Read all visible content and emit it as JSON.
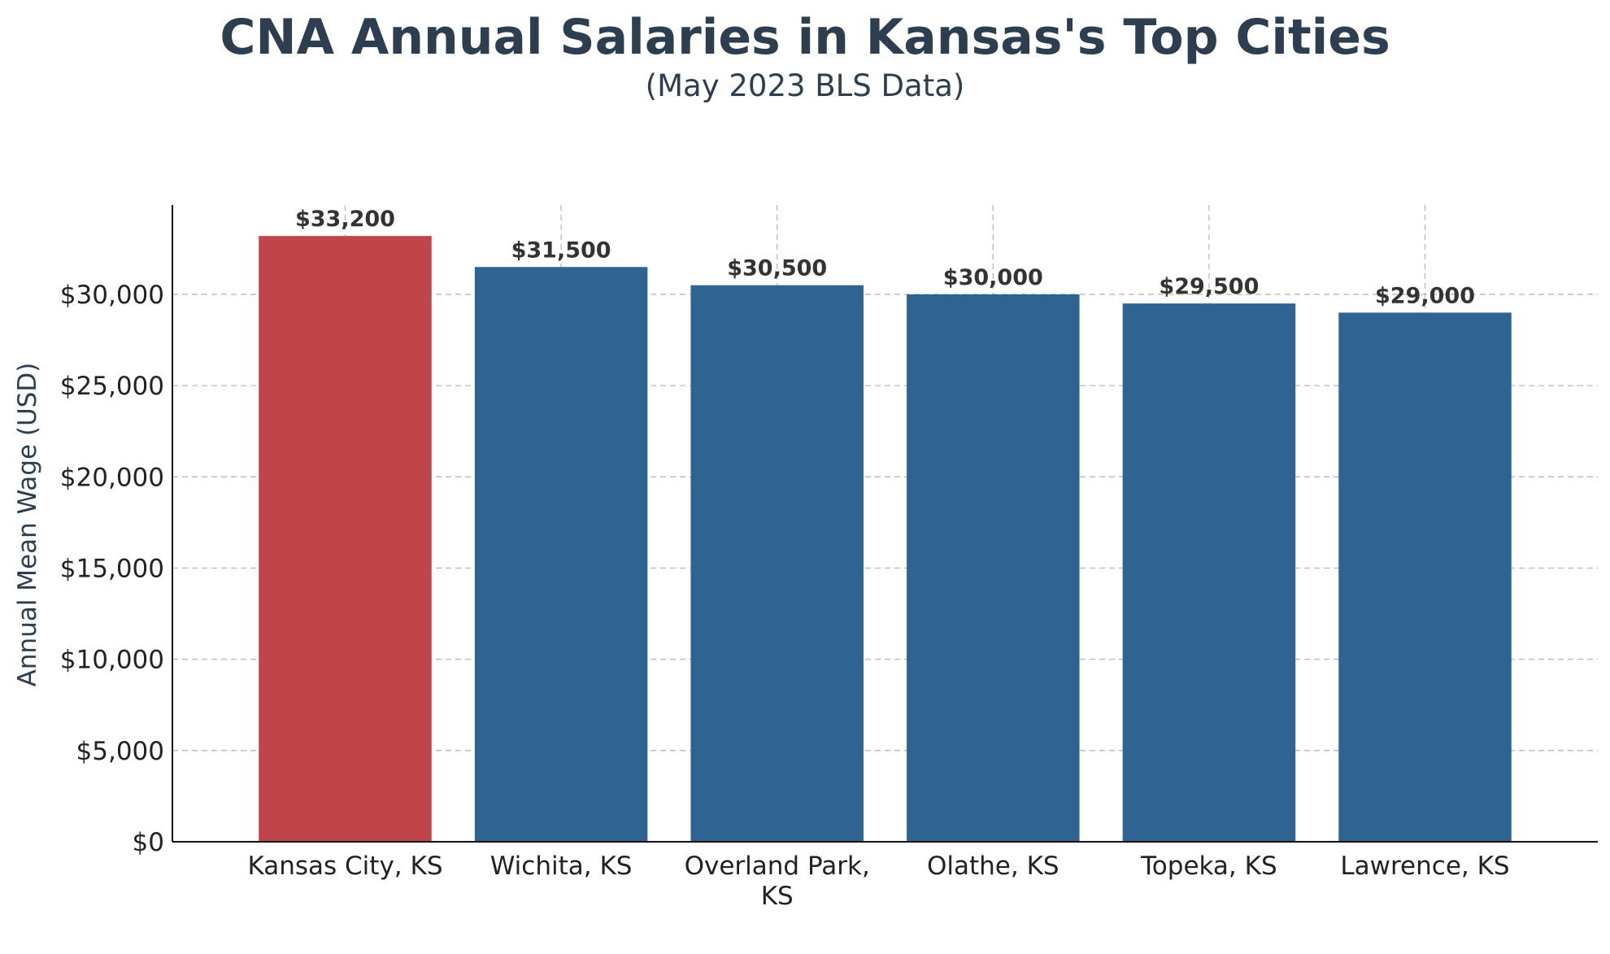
{
  "chart_data": {
    "type": "bar",
    "title": "CNA Annual Salaries in Kansas's Top Cities",
    "subtitle": "(May 2023 BLS Data)",
    "xlabel": "",
    "ylabel": "Annual Mean Wage (USD)",
    "categories": [
      [
        "Kansas City, KS"
      ],
      [
        "Wichita, KS"
      ],
      [
        "Overland Park,",
        "KS"
      ],
      [
        "Olathe, KS"
      ],
      [
        "Topeka, KS"
      ],
      [
        "Lawrence, KS"
      ]
    ],
    "values": [
      33200,
      31500,
      30500,
      30000,
      29500,
      29000
    ],
    "value_labels": [
      "$33,200",
      "$31,500",
      "$30,500",
      "$30,000",
      "$29,500",
      "$29,000"
    ],
    "bar_colors": [
      "#c0454a",
      "#2f6391",
      "#2f6391",
      "#2f6391",
      "#2f6391",
      "#2f6391"
    ],
    "highlight_color": "#c0454a",
    "default_color": "#2f6391",
    "ylim": [
      0,
      34900
    ],
    "yticks": [
      0,
      5000,
      10000,
      15000,
      20000,
      25000,
      30000
    ],
    "ytick_labels": [
      "$0",
      "$5,000",
      "$10,000",
      "$15,000",
      "$20,000",
      "$25,000",
      "$30,000"
    ],
    "grid": true,
    "legend": "none"
  }
}
